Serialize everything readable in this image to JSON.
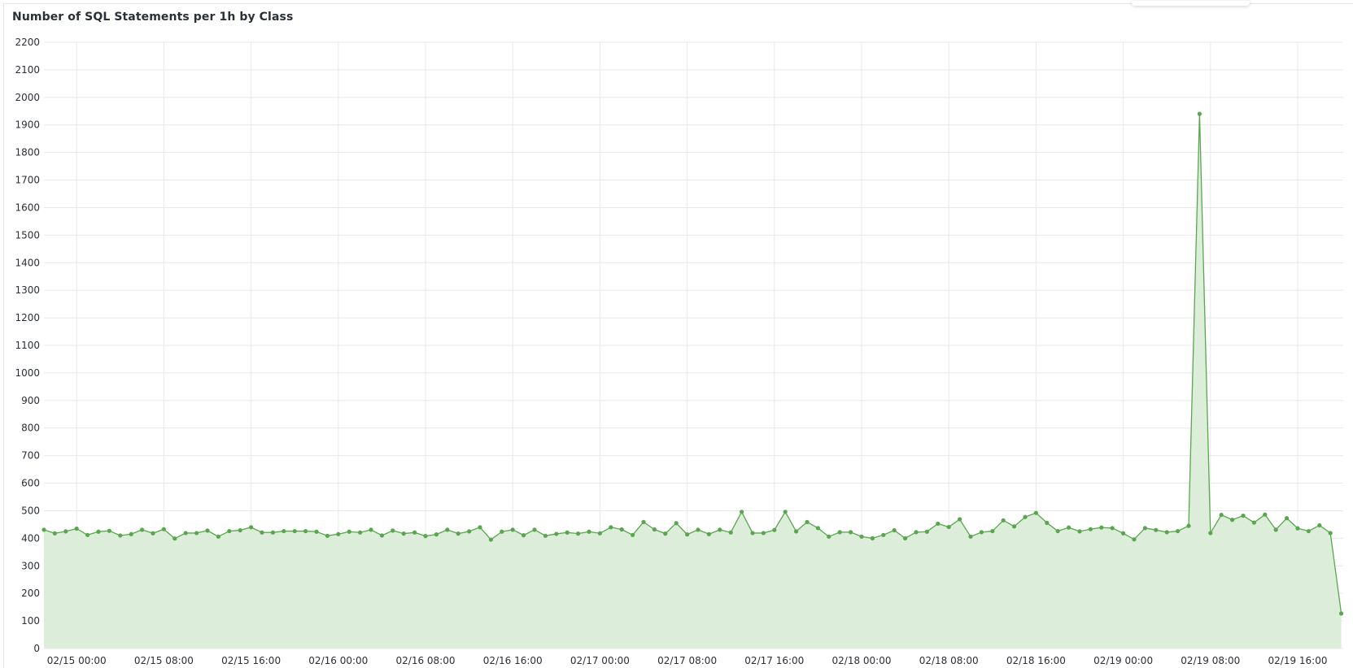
{
  "chart_data": {
    "type": "area",
    "title": "Number of SQL Statements per 1h by Class",
    "xlabel": "",
    "ylabel": "",
    "ylim": [
      0,
      2200
    ],
    "y_ticks": [
      0,
      100,
      200,
      300,
      400,
      500,
      600,
      700,
      800,
      900,
      1000,
      1100,
      1200,
      1300,
      1400,
      1500,
      1600,
      1700,
      1800,
      1900,
      2000,
      2100,
      2200
    ],
    "x_start": "02/14 21:00",
    "x_interval": "1h",
    "x_tick_labels": [
      "02/15 00:00",
      "02/15 08:00",
      "02/15 16:00",
      "02/16 00:00",
      "02/16 08:00",
      "02/16 16:00",
      "02/17 00:00",
      "02/17 08:00",
      "02/17 16:00",
      "02/18 00:00",
      "02/18 08:00",
      "02/18 16:00",
      "02/19 00:00",
      "02/19 08:00",
      "02/19 16:00"
    ],
    "grid": true,
    "legend": "none",
    "colors": {
      "line": "#5aa64f",
      "fill": "#dcedd9",
      "grid": "#e6e8eb"
    },
    "series": [
      {
        "values": [
          431,
          418,
          425,
          435,
          412,
          424,
          427,
          410,
          415,
          431,
          418,
          433,
          399,
          419,
          419,
          428,
          406,
          426,
          429,
          440,
          421,
          421,
          426,
          426,
          426,
          424,
          409,
          415,
          424,
          421,
          431,
          410,
          428,
          417,
          421,
          408,
          414,
          431,
          417,
          425,
          440,
          395,
          424,
          431,
          411,
          431,
          409,
          416,
          421,
          417,
          424,
          418,
          440,
          432,
          412,
          459,
          432,
          417,
          455,
          414,
          431,
          415,
          431,
          421,
          496,
          419,
          419,
          430,
          496,
          425,
          459,
          437,
          406,
          422,
          422,
          406,
          400,
          412,
          429,
          400,
          422,
          424,
          453,
          441,
          469,
          406,
          422,
          426,
          465,
          443,
          477,
          492,
          456,
          426,
          439,
          425,
          433,
          439,
          437,
          418,
          396,
          437,
          430,
          422,
          426,
          445,
          1940,
          419,
          485,
          467,
          482,
          457,
          486,
          431,
          473,
          436,
          426,
          447,
          419,
          127
        ]
      }
    ]
  }
}
